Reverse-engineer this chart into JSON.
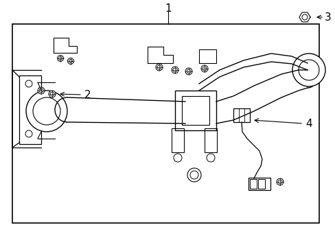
{
  "title": "",
  "background_color": "#ffffff",
  "border_color": "#000000",
  "line_color": "#000000",
  "text_color": "#000000",
  "label_1": "1",
  "label_2": "2",
  "label_3": "3",
  "label_4": "4",
  "fig_width": 4.89,
  "fig_height": 3.6,
  "dpi": 100
}
